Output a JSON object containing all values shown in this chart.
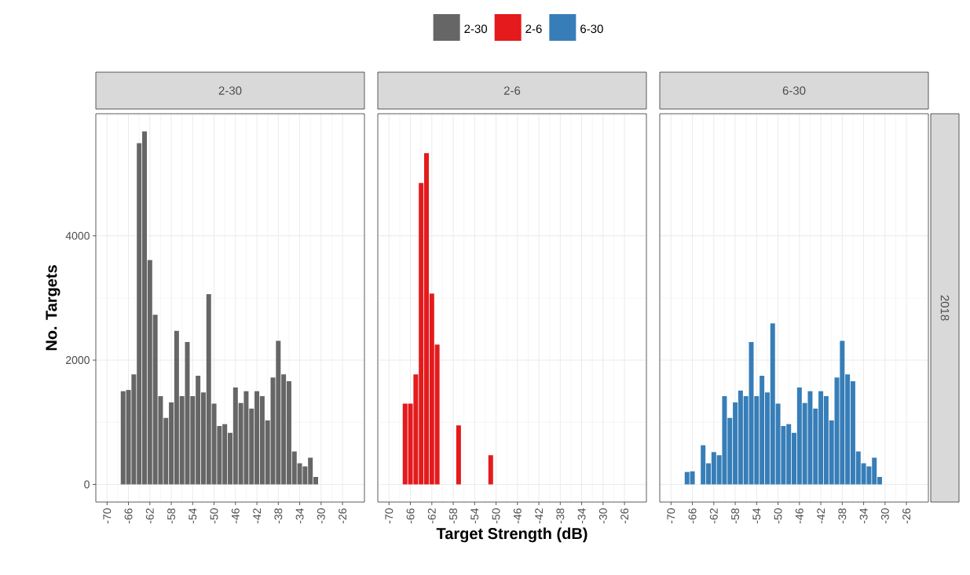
{
  "chart_data": [
    {
      "type": "histogram",
      "title": "2-30",
      "ylabel": "No. Targets",
      "legend": "top",
      "grid": true,
      "tick_labels": true,
      "bins": [
        -67.5,
        -66.5,
        -65.5,
        -64.5,
        -63.5,
        -62.5,
        -61.5,
        -60.5,
        -59.5,
        -58.5,
        -57.5,
        -56.5,
        -55.5,
        -54.5,
        -53.5,
        -52.5,
        -51.5,
        -50.5,
        -49.5,
        -48.5,
        -47.5,
        -46.5,
        -45.5,
        -44.5,
        -43.5,
        -42.5,
        -41.5,
        -40.5,
        -39.5,
        -38.5,
        -37.5,
        -36.5,
        -35.5,
        -34.5,
        -33.5,
        -32.5,
        -31.5,
        -30.5
      ],
      "series": [
        {
          "name": "2-30",
          "color": "#666666",
          "values": [
            1500,
            1520,
            1770,
            5490,
            5680,
            3610,
            2730,
            1420,
            1070,
            1320,
            2470,
            1420,
            2290,
            1420,
            1750,
            1480,
            3060,
            1300,
            940,
            970,
            830,
            1560,
            1310,
            1500,
            1220,
            1500,
            1420,
            1030,
            1720,
            2310,
            1770,
            1660,
            530,
            340,
            290,
            430,
            120
          ]
        }
      ],
      "xlim": [
        -72.1,
        -21.9
      ],
      "xticks": [
        -70,
        -66,
        -62,
        -58,
        -54,
        -50,
        -46,
        -42,
        -38,
        -34,
        -30,
        -26
      ],
      "ylim": [
        -284,
        5965
      ],
      "yticks": [
        0,
        2000,
        4000
      ]
    },
    {
      "type": "histogram",
      "title": "2-6",
      "xlabel": "Target Strength (dB)",
      "legend": "top",
      "grid": true,
      "tick_labels": "x",
      "bins": [
        -67.5,
        -66.5,
        -65.5,
        -64.5,
        -63.5,
        -62.5,
        -61.5,
        -60.5,
        -59.5,
        -58.5,
        -57.5,
        -56.5,
        -55.5,
        -54.5,
        -53.5,
        -52.5,
        -51.5,
        -50.5,
        -49.5,
        -48.5,
        -47.5,
        -46.5,
        -45.5,
        -44.5,
        -43.5,
        -42.5,
        -41.5,
        -40.5,
        -39.5,
        -38.5,
        -37.5,
        -36.5,
        -35.5,
        -34.5,
        -33.5,
        -32.5,
        -31.5,
        -30.5
      ],
      "series": [
        {
          "name": "2-6",
          "color": "#e41a1c",
          "values": [
            1300,
            1300,
            1770,
            4850,
            5330,
            3070,
            2250,
            0,
            0,
            0,
            950,
            0,
            0,
            0,
            0,
            0,
            470,
            0,
            0,
            0,
            0,
            0,
            0,
            0,
            0,
            0,
            0,
            0,
            0,
            0,
            0,
            0,
            0,
            0,
            0,
            0,
            0
          ]
        }
      ],
      "xlim": [
        -72.1,
        -21.9
      ],
      "xticks": [
        -70,
        -66,
        -62,
        -58,
        -54,
        -50,
        -46,
        -42,
        -38,
        -34,
        -30,
        -26
      ],
      "ylim": [
        -284,
        5965
      ],
      "yticks": [
        0,
        2000,
        4000
      ]
    },
    {
      "type": "histogram",
      "title": "6-30",
      "y2label": "2018",
      "legend": "top",
      "grid": true,
      "tick_labels": "x",
      "bins": [
        -67.5,
        -66.5,
        -65.5,
        -64.5,
        -63.5,
        -62.5,
        -61.5,
        -60.5,
        -59.5,
        -58.5,
        -57.5,
        -56.5,
        -55.5,
        -54.5,
        -53.5,
        -52.5,
        -51.5,
        -50.5,
        -49.5,
        -48.5,
        -47.5,
        -46.5,
        -45.5,
        -44.5,
        -43.5,
        -42.5,
        -41.5,
        -40.5,
        -39.5,
        -38.5,
        -37.5,
        -36.5,
        -35.5,
        -34.5,
        -33.5,
        -32.5,
        -31.5,
        -30.5
      ],
      "series": [
        {
          "name": "6-30",
          "color": "#377eb8",
          "values": [
            200,
            210,
            0,
            630,
            340,
            520,
            470,
            1420,
            1070,
            1320,
            1510,
            1420,
            2290,
            1420,
            1750,
            1480,
            2590,
            1300,
            940,
            970,
            830,
            1560,
            1310,
            1500,
            1220,
            1500,
            1420,
            1030,
            1720,
            2310,
            1770,
            1660,
            530,
            340,
            290,
            430,
            120
          ]
        }
      ],
      "xlim": [
        -72.1,
        -21.9
      ],
      "xticks": [
        -70,
        -66,
        -62,
        -58,
        -54,
        -50,
        -46,
        -42,
        -38,
        -34,
        -30,
        -26
      ],
      "ylim": [
        -284,
        5965
      ],
      "yticks": [
        0,
        2000,
        4000
      ]
    }
  ]
}
